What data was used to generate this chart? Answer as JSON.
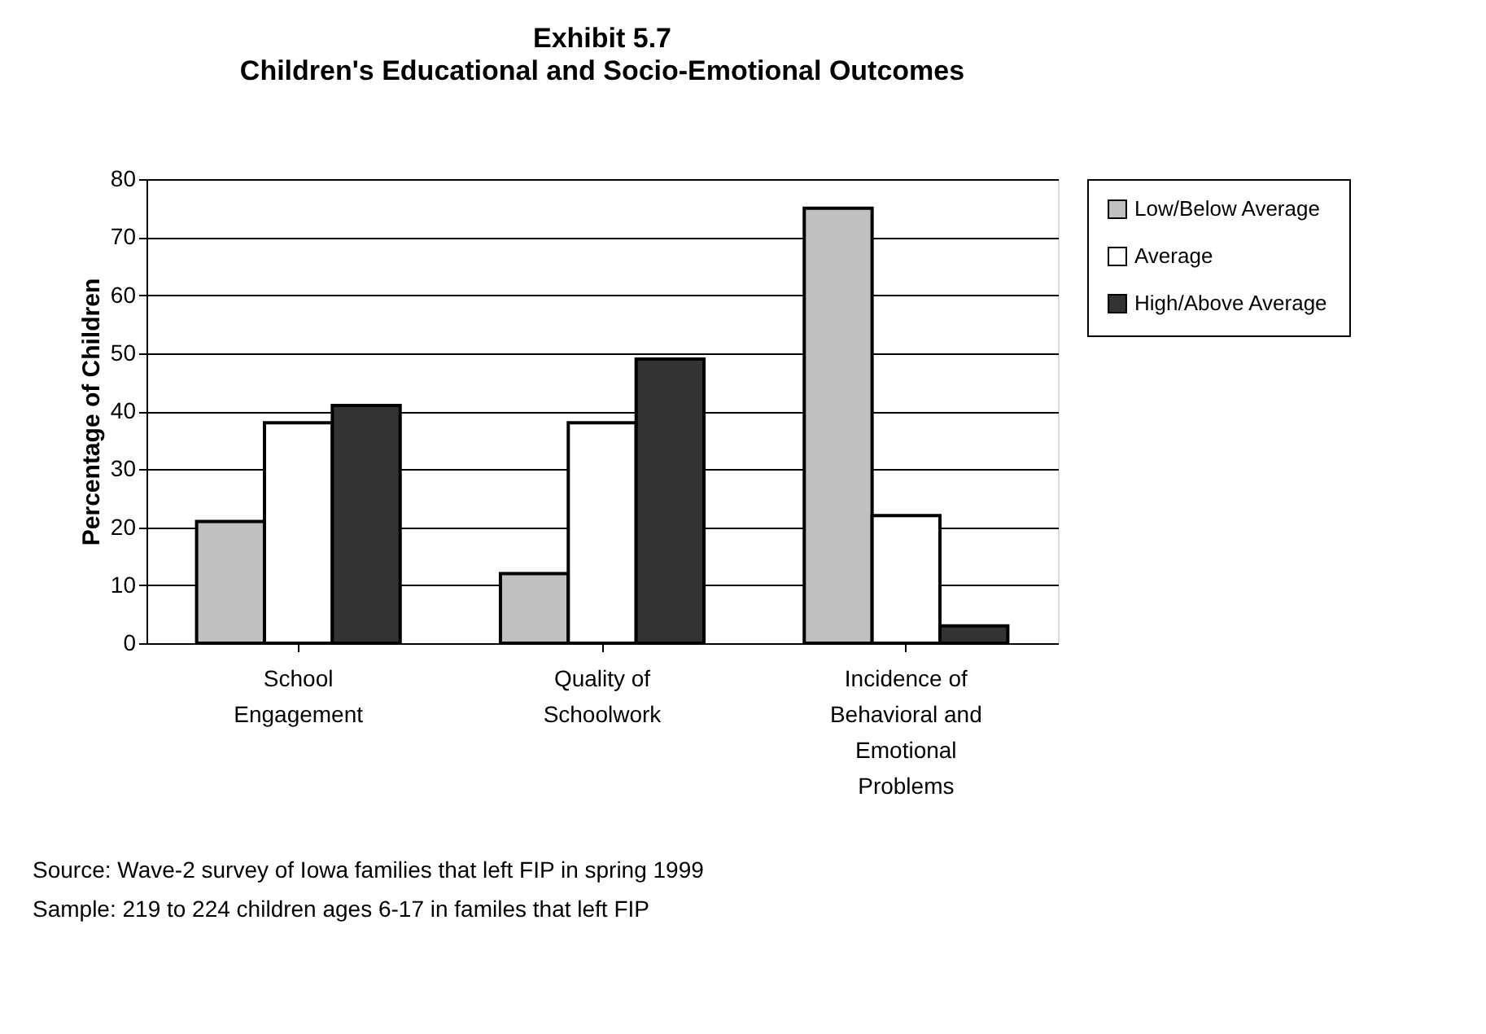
{
  "chart_data": {
    "type": "bar",
    "title": "Exhibit 5.7",
    "subtitle": "Children's Educational and Socio-Emotional Outcomes",
    "ylabel": "Percentage of Children",
    "categories": [
      "School Engagement",
      "Quality of Schoolwork",
      "Incidence of Behavioral and Emotional Problems"
    ],
    "series": [
      {
        "name": "Low/Below Average",
        "color": "#c0c0c0",
        "values": [
          21,
          12,
          75
        ]
      },
      {
        "name": "Average",
        "color": "#ffffff",
        "values": [
          38,
          38,
          22
        ]
      },
      {
        "name": "High/Above Average",
        "color": "#333333",
        "values": [
          41,
          49,
          3
        ]
      }
    ],
    "ylim": [
      0,
      80
    ],
    "yticks": [
      0,
      10,
      20,
      30,
      40,
      50,
      60,
      70,
      80
    ],
    "grid": "y",
    "legend": "right",
    "annotations": [
      "Source:  Wave-2 survey of Iowa families that left FIP in spring 1999",
      "Sample: 219 to 224 children ages 6-17 in familes that left FIP"
    ]
  }
}
